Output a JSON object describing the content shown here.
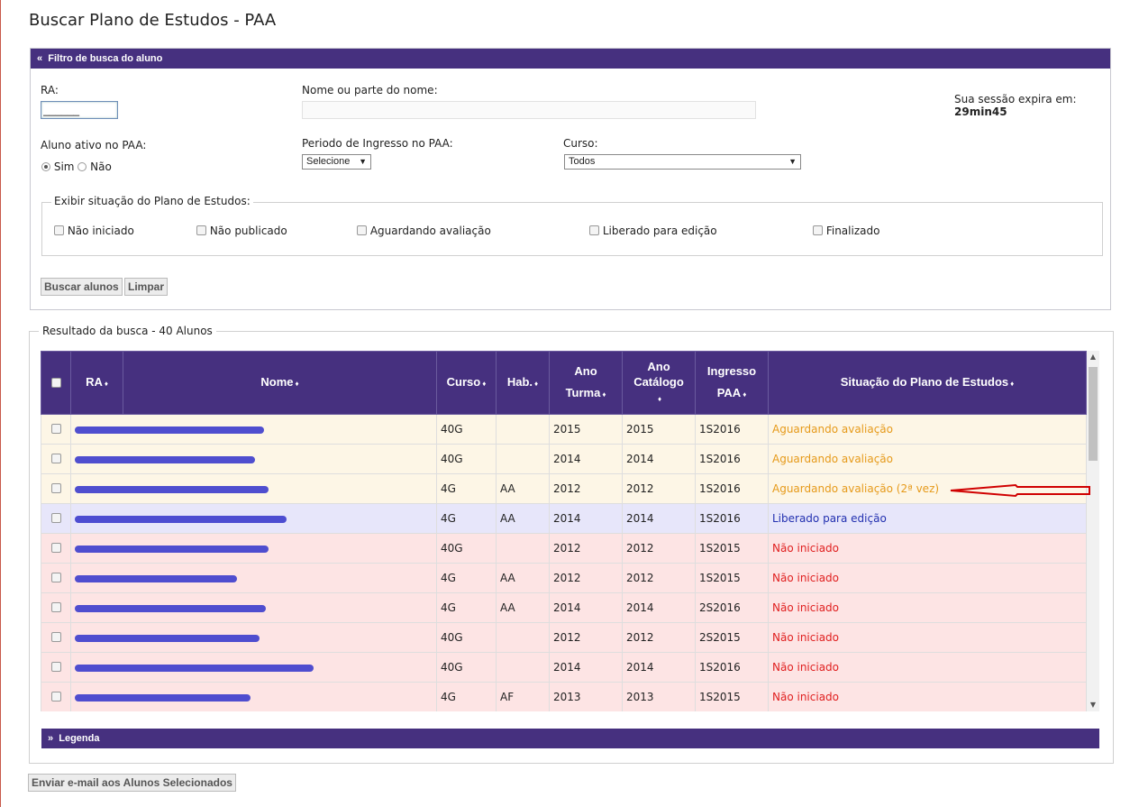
{
  "page": {
    "title": "Buscar Plano de Estudos - PAA"
  },
  "filter": {
    "header": "Filtro de busca do aluno",
    "header_icon": "«",
    "ra_label": "RA:",
    "ra_value": "______",
    "nome_label": "Nome ou parte do nome:",
    "nome_value": "",
    "session_text": "Sua sessão expira em:",
    "session_time": "29min45",
    "ativo_label": "Aluno ativo no PAA:",
    "ativo_sim": "Sim",
    "ativo_nao": "Não",
    "periodo_label": "Periodo de Ingresso no PAA:",
    "periodo_value": "Selecione",
    "curso_label": "Curso:",
    "curso_value": "Todos",
    "situacao_legend": "Exibir situação do Plano de Estudos:",
    "situacao_options": [
      "Não iniciado",
      "Não publicado",
      "Aguardando avaliação",
      "Liberado para edição",
      "Finalizado"
    ],
    "buscar_label": "Buscar alunos",
    "limpar_label": "Limpar"
  },
  "results": {
    "legend": "Resultado da busca - 40 Alunos",
    "columns": {
      "ra": "RA",
      "nome": "Nome",
      "curso": "Curso",
      "hab": "Hab.",
      "ano_turma_1": "Ano",
      "ano_turma_2": "Turma",
      "ano_catalogo_1": "Ano",
      "ano_catalogo_2": "Catálogo",
      "ingresso_1": "Ingresso",
      "ingresso_2": "PAA",
      "situacao": "Situação do Plano de Estudos",
      "sort_icon": "♦"
    },
    "rows": [
      {
        "curso": "40G",
        "hab": "",
        "ano_turma": "2015",
        "ano_catalogo": "2015",
        "ingresso": "1S2016",
        "situacao": "Aguardando avaliação",
        "status": "orange",
        "tone": "yellow"
      },
      {
        "curso": "40G",
        "hab": "",
        "ano_turma": "2014",
        "ano_catalogo": "2014",
        "ingresso": "1S2016",
        "situacao": "Aguardando avaliação",
        "status": "orange",
        "tone": "yellow"
      },
      {
        "curso": "4G",
        "hab": "AA",
        "ano_turma": "2012",
        "ano_catalogo": "2012",
        "ingresso": "1S2016",
        "situacao": "Aguardando avaliação (2ª vez)",
        "status": "orange",
        "tone": "yellow"
      },
      {
        "curso": "4G",
        "hab": "AA",
        "ano_turma": "2014",
        "ano_catalogo": "2014",
        "ingresso": "1S2016",
        "situacao": "Liberado para edição",
        "status": "blue",
        "tone": "blue"
      },
      {
        "curso": "40G",
        "hab": "",
        "ano_turma": "2012",
        "ano_catalogo": "2012",
        "ingresso": "1S2015",
        "situacao": "Não iniciado",
        "status": "red",
        "tone": "pink"
      },
      {
        "curso": "4G",
        "hab": "AA",
        "ano_turma": "2012",
        "ano_catalogo": "2012",
        "ingresso": "1S2015",
        "situacao": "Não iniciado",
        "status": "red",
        "tone": "pink"
      },
      {
        "curso": "4G",
        "hab": "AA",
        "ano_turma": "2014",
        "ano_catalogo": "2014",
        "ingresso": "2S2016",
        "situacao": "Não iniciado",
        "status": "red",
        "tone": "pink"
      },
      {
        "curso": "40G",
        "hab": "",
        "ano_turma": "2012",
        "ano_catalogo": "2012",
        "ingresso": "2S2015",
        "situacao": "Não iniciado",
        "status": "red",
        "tone": "pink"
      },
      {
        "curso": "40G",
        "hab": "",
        "ano_turma": "2014",
        "ano_catalogo": "2014",
        "ingresso": "1S2016",
        "situacao": "Não iniciado",
        "status": "red",
        "tone": "pink"
      },
      {
        "curso": "4G",
        "hab": "AF",
        "ano_turma": "2013",
        "ano_catalogo": "2013",
        "ingresso": "1S2015",
        "situacao": "Não iniciado",
        "status": "red",
        "tone": "pink"
      }
    ]
  },
  "legenda": {
    "label": "Legenda",
    "icon": "»"
  },
  "email_button": "Enviar e-mail aos Alunos Selecionados",
  "colors": {
    "header_purple": "#46307f",
    "orange": "#e69a1a",
    "blue": "#2230b0",
    "red": "#e02020",
    "arrow_red": "#d00000"
  }
}
